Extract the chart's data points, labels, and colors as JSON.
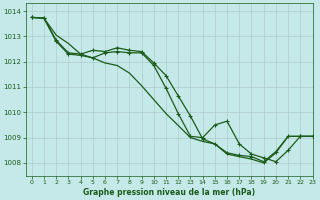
{
  "title": "Graphe pression niveau de la mer (hPa)",
  "background_color": "#c5e8e8",
  "grid_color": "#b0cccc",
  "line_color": "#1a5c1a",
  "xlim": [
    -0.5,
    23
  ],
  "ylim": [
    1007.5,
    1014.3
  ],
  "yticks": [
    1008,
    1009,
    1010,
    1011,
    1012,
    1013,
    1014
  ],
  "xticks": [
    0,
    1,
    2,
    3,
    4,
    5,
    6,
    7,
    8,
    9,
    10,
    11,
    12,
    13,
    14,
    15,
    16,
    17,
    18,
    19,
    20,
    21,
    22,
    23
  ],
  "series1_x": [
    0,
    1,
    2,
    3,
    4,
    5,
    6,
    7,
    8,
    9,
    10,
    11,
    12,
    13,
    14,
    15,
    16,
    17,
    18,
    19,
    20,
    21,
    22,
    23
  ],
  "series1_y": [
    1013.75,
    1013.72,
    1012.85,
    1012.35,
    1012.3,
    1012.45,
    1012.4,
    1012.55,
    1012.45,
    1012.4,
    1011.95,
    1011.45,
    1010.65,
    1009.85,
    1008.95,
    1008.75,
    1008.4,
    1008.3,
    1008.25,
    1008.05,
    1008.45,
    1009.05,
    1009.05,
    1009.05
  ],
  "series2_x": [
    0,
    1,
    2,
    3,
    4,
    5,
    6,
    7,
    8,
    9,
    10,
    11,
    12,
    13,
    14,
    15,
    16,
    17,
    18,
    19,
    20,
    21,
    22,
    23
  ],
  "series2_y": [
    1013.75,
    1013.72,
    1012.8,
    1012.3,
    1012.25,
    1012.15,
    1012.35,
    1012.4,
    1012.35,
    1012.35,
    1011.85,
    1010.95,
    1009.95,
    1009.05,
    1009.0,
    1009.5,
    1009.65,
    1008.75,
    1008.35,
    1008.2,
    1008.05,
    1008.5,
    1009.05,
    1009.05
  ],
  "series3_x": [
    0,
    1,
    2,
    3,
    4,
    5,
    6,
    7,
    8,
    9,
    10,
    11,
    12,
    13,
    14,
    15,
    16,
    17,
    18,
    19,
    20,
    21,
    22,
    23
  ],
  "series3_y": [
    1013.75,
    1013.72,
    1013.05,
    1012.72,
    1012.3,
    1012.15,
    1011.95,
    1011.85,
    1011.55,
    1011.05,
    1010.5,
    1009.95,
    1009.48,
    1009.0,
    1008.85,
    1008.75,
    1008.35,
    1008.25,
    1008.15,
    1008.0,
    1008.4,
    1009.05,
    1009.05,
    1009.05
  ],
  "series1_has_markers": true,
  "series2_has_markers": true,
  "series3_has_markers": false,
  "marker_style": "+",
  "linewidth": 0.9,
  "markersize": 3.5
}
